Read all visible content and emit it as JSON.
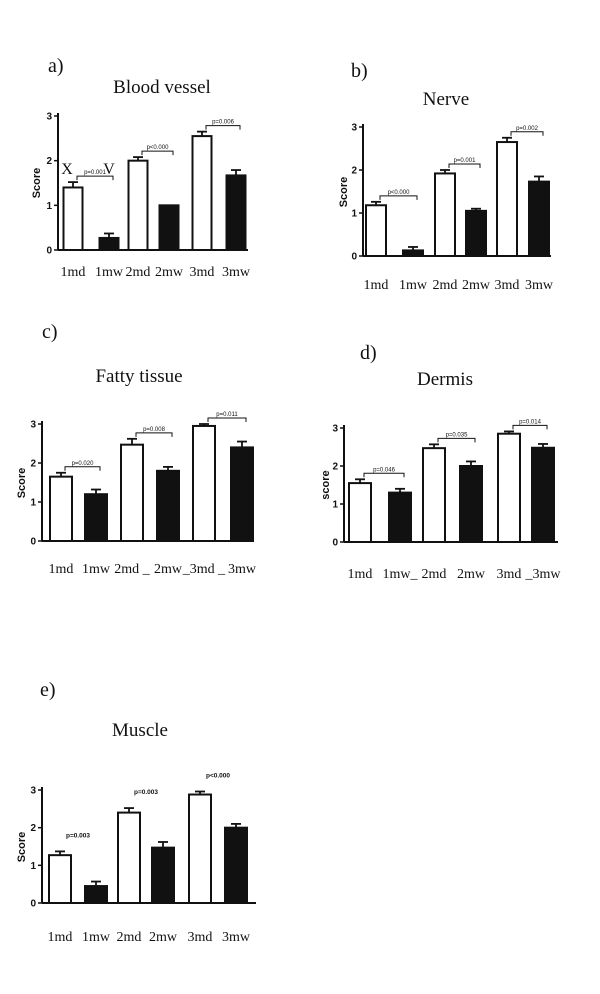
{
  "chart_data": [
    {
      "type": "bar",
      "letter": "a)",
      "title": "Blood vessel",
      "ylabel": "Score",
      "ylim": [
        0,
        3
      ],
      "yticks": [
        "0",
        "1",
        "2",
        "3"
      ],
      "categories": [
        "1md",
        "1mw",
        "2md",
        "2mw",
        "3md",
        "3mw"
      ],
      "values": [
        1.4,
        0.27,
        2.0,
        1.0,
        2.55,
        1.67
      ],
      "errors": [
        0.12,
        0.1,
        0.08,
        0.0,
        0.1,
        0.12
      ],
      "fill": [
        "white",
        "black",
        "white",
        "black",
        "white",
        "black"
      ],
      "pvalues": [
        "p=0.001",
        "p<0.000",
        "p=0.006"
      ],
      "bracket_style": "bracket",
      "marks": [
        "X",
        "V"
      ]
    },
    {
      "type": "bar",
      "letter": "b)",
      "title": "Nerve",
      "ylabel": "Score",
      "ylim": [
        0,
        3
      ],
      "yticks": [
        "0",
        "1",
        "2",
        "3"
      ],
      "categories": [
        "1md",
        "1mw",
        "2md",
        "2mw",
        "3md",
        "3mw"
      ],
      "values": [
        1.18,
        0.13,
        1.92,
        1.05,
        2.65,
        1.73
      ],
      "errors": [
        0.08,
        0.08,
        0.08,
        0.05,
        0.1,
        0.12
      ],
      "fill": [
        "white",
        "black",
        "white",
        "black",
        "white",
        "black"
      ],
      "pvalues": [
        "p<0.000",
        "p=0.001",
        "p=0.002"
      ],
      "bracket_style": "bracket"
    },
    {
      "type": "bar",
      "letter": "c)",
      "title": "Fatty tissue",
      "ylabel": "Score",
      "ylim": [
        0,
        3
      ],
      "yticks": [
        "0",
        "1",
        "2",
        "3"
      ],
      "categories": [
        "1md",
        "1mw",
        "2md",
        "2mw",
        "3md",
        "3mw"
      ],
      "xtick_text": [
        "1md",
        "1mw",
        "2md _",
        "2mw",
        "_3md _",
        "3mw"
      ],
      "values": [
        1.65,
        1.2,
        2.47,
        1.8,
        2.95,
        2.4
      ],
      "errors": [
        0.1,
        0.12,
        0.15,
        0.1,
        0.05,
        0.15
      ],
      "fill": [
        "white",
        "black",
        "white",
        "black",
        "white",
        "black"
      ],
      "pvalues": [
        "p=0.020",
        "p=0.008",
        "p=0.011"
      ],
      "bracket_style": "bracket"
    },
    {
      "type": "bar",
      "letter": "d)",
      "title": "Dermis",
      "ylabel": "score",
      "ylim": [
        0,
        3
      ],
      "yticks": [
        "0",
        "1",
        "2",
        "3"
      ],
      "categories": [
        "1md",
        "1mw",
        "2md",
        "2mw",
        "3md",
        "3mw"
      ],
      "xtick_text": [
        "1md",
        "1mw_",
        "2md",
        "2mw",
        "3md",
        "_3mw"
      ],
      "values": [
        1.55,
        1.3,
        2.47,
        2.0,
        2.85,
        2.48
      ],
      "errors": [
        0.1,
        0.1,
        0.1,
        0.12,
        0.06,
        0.1
      ],
      "fill": [
        "white",
        "black",
        "white",
        "black",
        "white",
        "black"
      ],
      "pvalues": [
        "p=0.046",
        "p=0.035",
        "p=0.014"
      ],
      "bracket_style": "bracket"
    },
    {
      "type": "bar",
      "letter": "e)",
      "title": "Muscle",
      "ylabel": "Score",
      "ylim": [
        0,
        3
      ],
      "yticks": [
        "0",
        "1",
        "2",
        "3"
      ],
      "categories": [
        "1md",
        "1mw",
        "2md",
        "2mw",
        "3md",
        "3mw"
      ],
      "values": [
        1.27,
        0.45,
        2.4,
        1.47,
        2.88,
        2.0
      ],
      "errors": [
        0.1,
        0.12,
        0.12,
        0.15,
        0.08,
        0.1
      ],
      "fill": [
        "white",
        "black",
        "white",
        "black",
        "white",
        "black"
      ],
      "pvalues": [
        "p=0.003",
        "p=0.003",
        "p<0.000"
      ],
      "bracket_style": "plain"
    }
  ]
}
